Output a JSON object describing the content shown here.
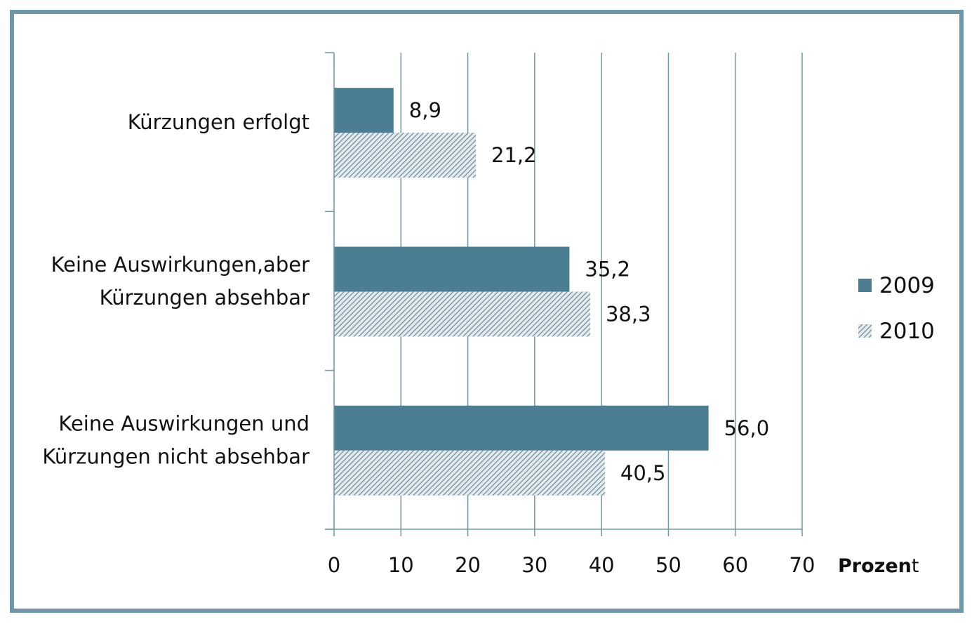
{
  "chart_data": {
    "type": "bar",
    "orientation": "horizontal",
    "categories": [
      [
        "Kürzungen erfolgt"
      ],
      [
        "Keine Auswirkungen,aber",
        "Kürzungen absehbar"
      ],
      [
        "Keine Auswirkungen und",
        "Kürzungen nicht absehbar"
      ]
    ],
    "series": [
      {
        "name": "2009",
        "values": [
          8.9,
          35.2,
          56.0
        ],
        "labels": [
          "8,9",
          "35,2",
          "56,0"
        ],
        "color": "#4b7e93",
        "pattern": "solid"
      },
      {
        "name": "2010",
        "values": [
          21.2,
          38.3,
          40.5
        ],
        "labels": [
          "21,2",
          "38,3",
          "40,5"
        ],
        "color": "#4b7e93",
        "pattern": "hatched"
      }
    ],
    "xlim": [
      0,
      70
    ],
    "xticks": [
      0,
      10,
      20,
      30,
      40,
      50,
      60,
      70
    ],
    "xlabel": {
      "bold": "Prozen",
      "normal": "t"
    },
    "grid": "vertical",
    "legend": "right"
  },
  "colors": {
    "frame": "#6e97aa",
    "bar": "#4b7e93",
    "grid": "#6e97aa",
    "hatch_bg": "#e6ecef"
  }
}
